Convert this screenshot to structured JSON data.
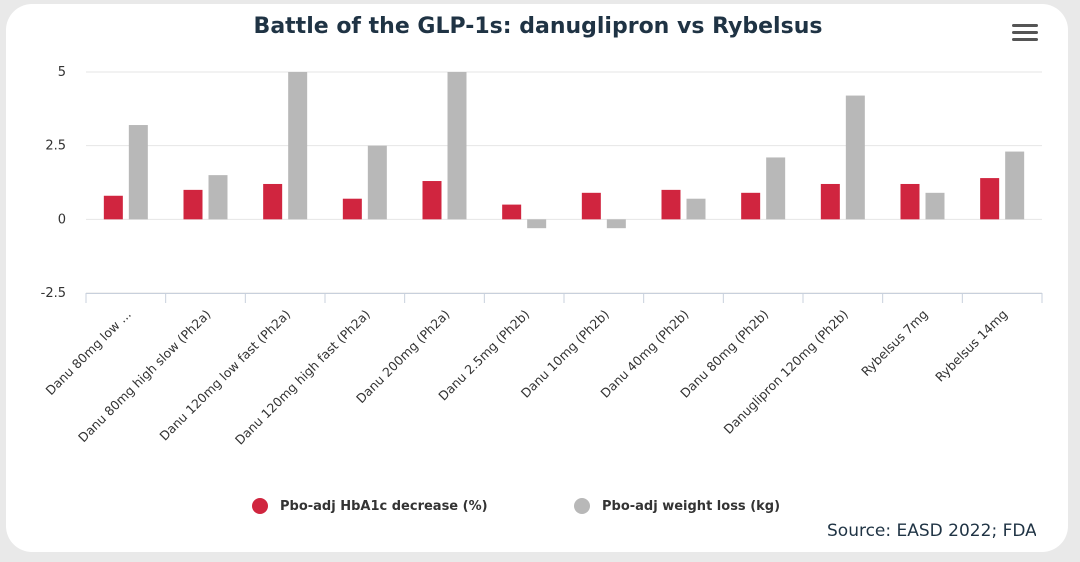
{
  "chart_data": {
    "type": "bar",
    "title": "Battle of the GLP-1s: danuglipron vs Rybelsus",
    "categories": [
      "Danu 80mg low ...",
      "Danu 80mg high slow (Ph2a)",
      "Danu 120mg low fast (Ph2a)",
      "Danu 120mg high fast (Ph2a)",
      "Danu 200mg (Ph2a)",
      "Danu 2.5mg (Ph2b)",
      "Danu 10mg (Ph2b)",
      "Danu 40mg (Ph2b)",
      "Danu 80mg (Ph2b)",
      "Danuglipron 120mg (Ph2b)",
      "Rybelsus 7mg",
      "Rybelsus 14mg"
    ],
    "series": [
      {
        "name": "Pbo-adj HbA1c decrease (%)",
        "color": "#d0253f",
        "values": [
          0.8,
          1.0,
          1.2,
          0.7,
          1.3,
          0.5,
          0.9,
          1.0,
          0.9,
          1.2,
          1.2,
          1.4
        ]
      },
      {
        "name": "Pbo-adj weight loss (kg)",
        "color": "#b8b8b8",
        "values": [
          3.2,
          1.5,
          5.0,
          2.5,
          5.0,
          -0.3,
          -0.3,
          0.7,
          2.1,
          4.2,
          0.9,
          2.3
        ]
      }
    ],
    "yticks": [
      -2.5,
      0,
      2.5,
      5
    ],
    "ytick_labels": [
      "-2.5",
      "0",
      "2.5",
      "5"
    ],
    "ylim": [
      -2.5,
      5
    ],
    "xlabel": "",
    "ylabel": "",
    "grid": true,
    "legend": "bottom-center"
  },
  "source_text": "Source: EASD 2022; FDA",
  "menu_icon": "hamburger-menu-icon"
}
